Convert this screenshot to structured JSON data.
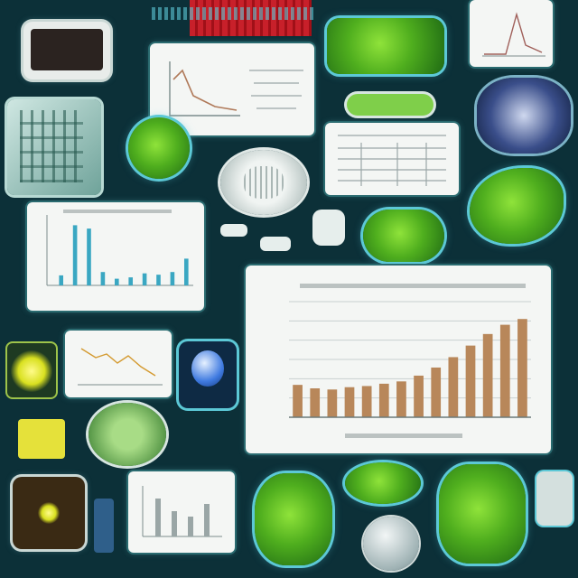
{
  "colors": {
    "background": "#0c3038",
    "card": "#f4f6f4",
    "bar": "#b8875a",
    "accent_green": "#5fbf24",
    "accent_cyan": "#5cc8d6",
    "accent_red": "#c8202a"
  },
  "icons": {
    "top_left_monitor": "monitor-icon",
    "glass_panel": "glass-panel-icon",
    "green_orb": "green-orb-icon",
    "white_oval_device": "oval-device-icon",
    "blue_mesh_dome": "mesh-dome-icon",
    "green_leaf": "leaf-icon",
    "light_bulb": "light-bulb-icon",
    "yellow_glow_cell": "glow-cell-icon"
  },
  "main_chart": {
    "bars": [
      0.28,
      0.25,
      0.24,
      0.26,
      0.27,
      0.29,
      0.31,
      0.36,
      0.43,
      0.52,
      0.62,
      0.72,
      0.8,
      0.85
    ],
    "gridlines": 6
  },
  "small_chart": {
    "bars": [
      0.15,
      0.9,
      0.85,
      0.2,
      0.1,
      0.12,
      0.18,
      0.16,
      0.2,
      0.4
    ]
  }
}
